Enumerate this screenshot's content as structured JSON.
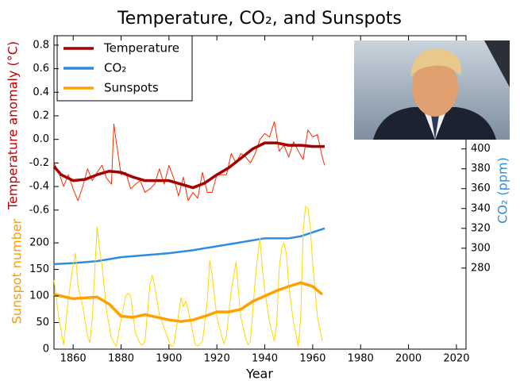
{
  "chart_data": {
    "type": "line",
    "title": "Temperature, CO₂, and Sunspots",
    "xlabel": "Year",
    "ylabel": "Temperature anomaly (°C)",
    "y2label": "CO₂ (ppm)",
    "y3label": "Sunspot number",
    "xlim": [
      1852,
      2024
    ],
    "xticks": [
      1860,
      1880,
      1900,
      1920,
      1940,
      1960,
      1980,
      2000,
      2020
    ],
    "ylim": [
      -1.78,
      0.88
    ],
    "yticks": [
      -0.6,
      -0.4,
      -0.2,
      {
        "value": 0,
        "label": "0.0"
      },
      0.2,
      0.4,
      0.6,
      0.8
    ],
    "y2lim": [
      198.4,
      514
    ],
    "y2ticks": [
      280,
      300,
      320,
      340,
      360,
      380,
      400
    ],
    "y3lim": [
      0,
      590
    ],
    "y3ticks": [
      0,
      50,
      100,
      150,
      200
    ],
    "legend": "upper left",
    "series": [
      {
        "color": "#ff2a00",
        "axis": "y",
        "linewidth": 1,
        "x": [
          1852,
          1854,
          1856,
          1858,
          1860,
          1862,
          1864,
          1866,
          1868,
          1870,
          1872,
          1874,
          1876,
          1877,
          1878,
          1880,
          1882,
          1884,
          1886,
          1888,
          1890,
          1892,
          1894,
          1896,
          1898,
          1900,
          1902,
          1904,
          1906,
          1908,
          1910,
          1912,
          1914,
          1916,
          1918,
          1920,
          1922,
          1924,
          1926,
          1928,
          1930,
          1932,
          1934,
          1936,
          1938,
          1940,
          1942,
          1944,
          1946,
          1948,
          1950,
          1952,
          1954,
          1956,
          1958,
          1960,
          1962,
          1964,
          1965
        ],
        "values": [
          -0.2,
          -0.28,
          -0.4,
          -0.3,
          -0.42,
          -0.52,
          -0.4,
          -0.25,
          -0.35,
          -0.28,
          -0.22,
          -0.33,
          -0.38,
          0.13,
          -0.02,
          -0.3,
          -0.28,
          -0.42,
          -0.38,
          -0.35,
          -0.45,
          -0.42,
          -0.38,
          -0.25,
          -0.38,
          -0.22,
          -0.33,
          -0.48,
          -0.32,
          -0.52,
          -0.45,
          -0.5,
          -0.28,
          -0.45,
          -0.45,
          -0.3,
          -0.3,
          -0.3,
          -0.12,
          -0.2,
          -0.12,
          -0.15,
          -0.2,
          -0.12,
          0.0,
          0.05,
          0.02,
          0.15,
          -0.1,
          -0.05,
          -0.15,
          -0.02,
          -0.1,
          -0.17,
          0.08,
          0.02,
          0.04,
          -0.15,
          -0.22
        ]
      },
      {
        "name": "Temperature",
        "color": "#a50000",
        "axis": "y",
        "linewidth": 3.5,
        "x": [
          1852,
          1855,
          1860,
          1865,
          1870,
          1875,
          1880,
          1885,
          1890,
          1895,
          1900,
          1905,
          1910,
          1915,
          1920,
          1925,
          1930,
          1935,
          1940,
          1945,
          1950,
          1955,
          1960,
          1965
        ],
        "values": [
          -0.23,
          -0.3,
          -0.35,
          -0.34,
          -0.3,
          -0.27,
          -0.28,
          -0.32,
          -0.35,
          -0.35,
          -0.35,
          -0.38,
          -0.41,
          -0.37,
          -0.3,
          -0.24,
          -0.16,
          -0.08,
          -0.03,
          -0.03,
          -0.05,
          -0.05,
          -0.06,
          -0.06
        ]
      },
      {
        "name": "CO₂",
        "color": "#2e8be0",
        "axis": "y2",
        "linewidth": 2.5,
        "x": [
          1852,
          1860,
          1870,
          1880,
          1890,
          1900,
          1910,
          1920,
          1930,
          1940,
          1950,
          1955,
          1960,
          1965
        ],
        "values": [
          284,
          285,
          287,
          291,
          293,
          295,
          298,
          302,
          306,
          310,
          310,
          312,
          316,
          320
        ]
      },
      {
        "color": "#ffd700",
        "axis": "y3",
        "linewidth": 1,
        "x": [
          1852,
          1854,
          1856,
          1858,
          1860,
          1861,
          1862,
          1864,
          1866,
          1867,
          1868,
          1870,
          1871,
          1872,
          1874,
          1876,
          1878,
          1880,
          1882,
          1883,
          1884,
          1886,
          1888,
          1889,
          1890,
          1892,
          1893,
          1894,
          1896,
          1898,
          1900,
          1901,
          1902,
          1904,
          1905,
          1906,
          1907,
          1908,
          1910,
          1911,
          1912,
          1914,
          1916,
          1917,
          1918,
          1920,
          1922,
          1923,
          1924,
          1926,
          1928,
          1929,
          1930,
          1932,
          1933,
          1934,
          1936,
          1937,
          1938,
          1939,
          1940,
          1942,
          1944,
          1945,
          1946,
          1947,
          1948,
          1949,
          1950,
          1952,
          1954,
          1955,
          1956,
          1957,
          1958,
          1959,
          1960,
          1962,
          1964
        ],
        "values": [
          130,
          60,
          8,
          95,
          160,
          180,
          120,
          80,
          25,
          12,
          60,
          230,
          190,
          160,
          70,
          20,
          5,
          55,
          100,
          105,
          100,
          30,
          10,
          8,
          15,
          120,
          139,
          120,
          65,
          40,
          15,
          5,
          8,
          65,
          97,
          80,
          90,
          75,
          30,
          8,
          6,
          15,
          90,
          167,
          140,
          60,
          25,
          10,
          25,
          110,
          164,
          110,
          60,
          20,
          8,
          15,
          130,
          175,
          209,
          150,
          110,
          50,
          15,
          50,
          150,
          190,
          200,
          180,
          120,
          50,
          5,
          60,
          220,
          269,
          265,
          230,
          160,
          60,
          15
        ]
      },
      {
        "name": "Sunspots",
        "color": "#ffa000",
        "axis": "y3",
        "linewidth": 3.5,
        "x": [
          1852,
          1860,
          1870,
          1875,
          1880,
          1885,
          1890,
          1895,
          1900,
          1905,
          1910,
          1915,
          1920,
          1925,
          1930,
          1935,
          1940,
          1945,
          1950,
          1955,
          1960,
          1964
        ],
        "values": [
          103,
          95,
          98,
          85,
          62,
          60,
          65,
          60,
          55,
          52,
          55,
          62,
          70,
          70,
          75,
          90,
          100,
          110,
          118,
          125,
          118,
          103
        ]
      }
    ]
  }
}
